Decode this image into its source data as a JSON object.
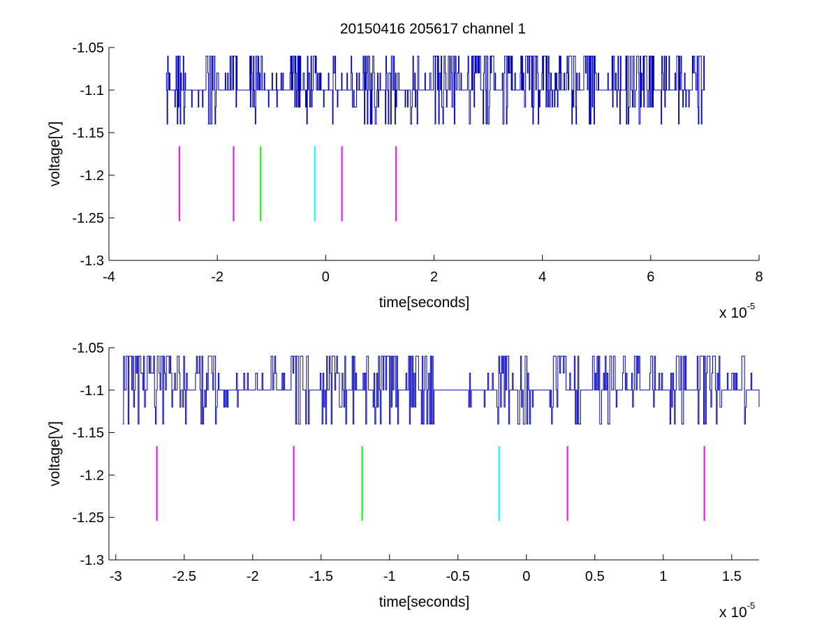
{
  "figure": {
    "title": "20150416 205617 channel 1",
    "background": "#ffffff"
  },
  "chart_data": [
    {
      "type": "line",
      "title": "20150416 205617 channel 1",
      "xlabel": "time[seconds]",
      "ylabel": "voltage[V]",
      "x_multiplier_label": "x 10",
      "x_multiplier_exponent": "-5",
      "xlim": [
        -4,
        8
      ],
      "ylim": [
        -1.3,
        -1.05
      ],
      "xticks": [
        -4,
        -2,
        0,
        2,
        4,
        6,
        8
      ],
      "xtick_labels": [
        "-4",
        "-2",
        "0",
        "2",
        "4",
        "6",
        "8"
      ],
      "yticks": [
        -1.05,
        -1.1,
        -1.15,
        -1.2,
        -1.25,
        -1.3
      ],
      "ytick_labels": [
        "-1.05",
        "-1.1",
        "-1.15",
        "-1.2",
        "-1.25",
        "-1.3"
      ],
      "grid": false,
      "series": [
        {
          "color": "#0000cc",
          "x_range": [
            -2.95,
            7.0
          ],
          "baseline": -1.1,
          "levels": [
            -1.06,
            -1.08,
            -1.1,
            -1.12,
            -1.14
          ],
          "description_values": "digitized noisy signal oscillating between -1.14 V and -1.06 V around -1.1 V"
        }
      ],
      "markers": [
        {
          "x": -2.7,
          "y_range": [
            -1.254,
            -1.166
          ],
          "color": "#ff00ff"
        },
        {
          "x": -1.7,
          "y_range": [
            -1.254,
            -1.166
          ],
          "color": "#ff00ff"
        },
        {
          "x": -1.2,
          "y_range": [
            -1.254,
            -1.166
          ],
          "color": "#00ff00"
        },
        {
          "x": -0.2,
          "y_range": [
            -1.254,
            -1.166
          ],
          "color": "#00ffff"
        },
        {
          "x": 0.3,
          "y_range": [
            -1.254,
            -1.166
          ],
          "color": "#ff00ff"
        },
        {
          "x": 1.3,
          "y_range": [
            -1.254,
            -1.166
          ],
          "color": "#ff00ff"
        }
      ]
    },
    {
      "type": "line",
      "title": "",
      "xlabel": "time[seconds]",
      "ylabel": "voltage[V]",
      "x_multiplier_label": "x 10",
      "x_multiplier_exponent": "-5",
      "xlim": [
        -3.05,
        1.7
      ],
      "ylim": [
        -1.3,
        -1.05
      ],
      "xticks": [
        -3,
        -2.5,
        -2,
        -1.5,
        -1,
        -0.5,
        0,
        0.5,
        1,
        1.5
      ],
      "xtick_labels": [
        "-3",
        "-2.5",
        "-2",
        "-1.5",
        "-1",
        "-0.5",
        "0",
        "0.5",
        "1",
        "1.5"
      ],
      "yticks": [
        -1.05,
        -1.1,
        -1.15,
        -1.2,
        -1.25,
        -1.3
      ],
      "ytick_labels": [
        "-1.05",
        "-1.1",
        "-1.15",
        "-1.2",
        "-1.25",
        "-1.3"
      ],
      "grid": false,
      "series": [
        {
          "color": "#0000cc",
          "x_range": [
            -2.95,
            1.7
          ],
          "baseline": -1.1,
          "levels": [
            -1.06,
            -1.08,
            -1.1,
            -1.12,
            -1.14
          ],
          "description_values": "zoomed view of the same digitized signal between -1.14 V and -1.06 V"
        }
      ],
      "markers": [
        {
          "x": -2.7,
          "y_range": [
            -1.254,
            -1.166
          ],
          "color": "#ff00ff"
        },
        {
          "x": -1.7,
          "y_range": [
            -1.254,
            -1.166
          ],
          "color": "#ff00ff"
        },
        {
          "x": -1.2,
          "y_range": [
            -1.254,
            -1.166
          ],
          "color": "#00ff00"
        },
        {
          "x": -0.2,
          "y_range": [
            -1.254,
            -1.166
          ],
          "color": "#00ffff"
        },
        {
          "x": 0.3,
          "y_range": [
            -1.254,
            -1.166
          ],
          "color": "#ff00ff"
        },
        {
          "x": 1.3,
          "y_range": [
            -1.254,
            -1.166
          ],
          "color": "#ff00ff"
        }
      ]
    }
  ]
}
